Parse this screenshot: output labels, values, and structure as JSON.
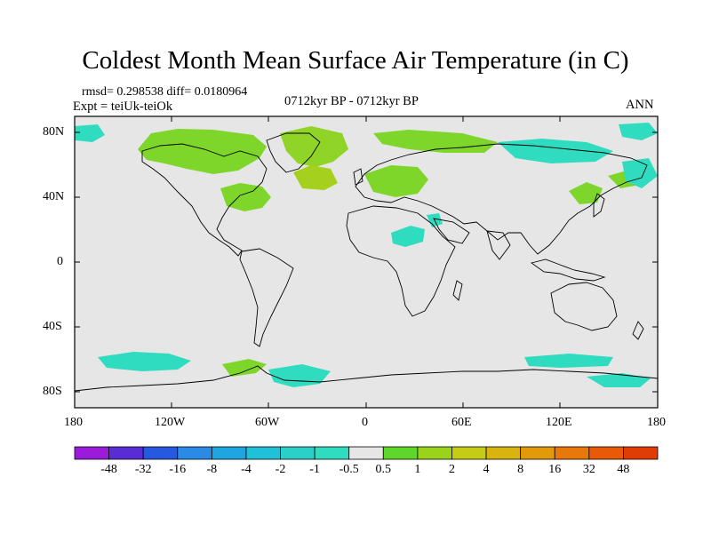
{
  "title": "Coldest Month Mean Surface Air Temperature (in C)",
  "stats": {
    "rmsd": "rmsd= 0.298538  diff= 0.0180964"
  },
  "expt": "Expt = teiUk-teiOk",
  "period": "0712kyr BP - 0712kyr BP",
  "season": "ANN",
  "y_ticks": [
    "80N",
    "40N",
    "0",
    "40S",
    "80S"
  ],
  "x_ticks": [
    "180",
    "120W",
    "60W",
    "0",
    "60E",
    "120E",
    "180"
  ],
  "legend": {
    "labels": [
      "-48",
      "-32",
      "-16",
      "-8",
      "-4",
      "-2",
      "-1",
      "-0.5",
      "0.5",
      "1",
      "2",
      "4",
      "8",
      "16",
      "32",
      "48"
    ],
    "colors": [
      "#9a1bd9",
      "#5a2cd6",
      "#2658e0",
      "#2a8ae6",
      "#1fa6e0",
      "#20c0d8",
      "#2ad0c8",
      "#30dcc0",
      "#e6e6e6",
      "#5fd62a",
      "#9ad21c",
      "#c6cc14",
      "#d8b40e",
      "#e29a0a",
      "#e8780a",
      "#e85a08",
      "#e03c06"
    ]
  },
  "colors": {
    "background": "#e6e6e6",
    "frame": "#000000",
    "coast": "#000000"
  }
}
